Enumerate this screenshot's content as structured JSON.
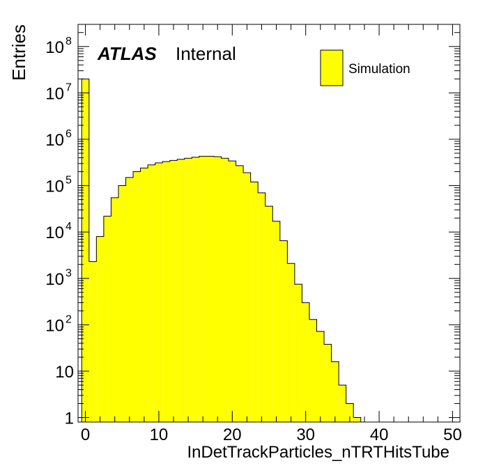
{
  "chart_data": {
    "type": "bar",
    "title": "",
    "xlabel": "InDetTrackParticles_nTRTHitsTube",
    "ylabel": "Entries",
    "yscale": "log",
    "xlim": [
      -1,
      51
    ],
    "ylim": [
      0.8,
      300000000
    ],
    "x_ticks": [
      "0",
      "10",
      "20",
      "30",
      "40",
      "50"
    ],
    "y_ticks": [
      {
        "base": "1",
        "exp": ""
      },
      {
        "base": "10",
        "exp": ""
      },
      {
        "base": "10",
        "exp": "2"
      },
      {
        "base": "10",
        "exp": "3"
      },
      {
        "base": "10",
        "exp": "4"
      },
      {
        "base": "10",
        "exp": "5"
      },
      {
        "base": "10",
        "exp": "6"
      },
      {
        "base": "10",
        "exp": "7"
      },
      {
        "base": "10",
        "exp": "8"
      }
    ],
    "bin_width": 1,
    "bin_start": -0.5,
    "fill_color": "#ffff00",
    "line_color": "#000000",
    "series": [
      {
        "name": "Simulation",
        "values": [
          20000000,
          2300,
          8000,
          22000,
          55000,
          100000,
          150000,
          200000,
          240000,
          280000,
          310000,
          330000,
          350000,
          370000,
          390000,
          410000,
          430000,
          430000,
          420000,
          390000,
          340000,
          270000,
          190000,
          120000,
          70000,
          36000,
          17000,
          6500,
          2100,
          750,
          300,
          130,
          72,
          38,
          16,
          5,
          2,
          1,
          0,
          0,
          0,
          0,
          0
        ]
      }
    ],
    "legend": {
      "position": "top-right",
      "entries": [
        "Simulation"
      ]
    },
    "annotations": {
      "atlas": "ATLAS",
      "status": "Internal"
    },
    "grid": false
  }
}
